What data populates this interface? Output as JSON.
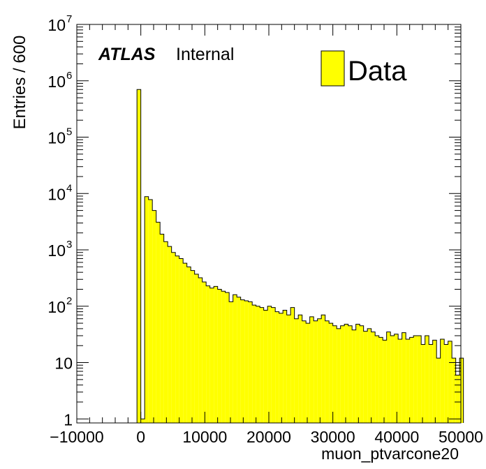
{
  "labels": {
    "atlas": "ATLAS",
    "internal": "Internal"
  },
  "legend": {
    "label": "Data",
    "color": "#ffff00",
    "position": "top-right"
  },
  "chart_data": {
    "type": "bar",
    "title": "",
    "xlabel": "muon_ptvarcone20",
    "ylabel": "Entries / 600",
    "xlim": [
      -10000,
      50000
    ],
    "ylim": [
      0.85,
      10000000
    ],
    "ylog": true,
    "bin_width": 600,
    "fill_color": "#ffff00",
    "xticks": [
      "−10000",
      "0",
      "10000",
      "20000",
      "30000",
      "40000",
      "50000"
    ],
    "xtick_values": [
      -10000,
      0,
      10000,
      20000,
      30000,
      40000,
      50000
    ],
    "yticks": [
      {
        "value": 1,
        "base": "1",
        "exp": ""
      },
      {
        "value": 10,
        "base": "10",
        "exp": ""
      },
      {
        "value": 100,
        "base": "10",
        "exp": "2"
      },
      {
        "value": 1000,
        "base": "10",
        "exp": "3"
      },
      {
        "value": 10000,
        "base": "10",
        "exp": "4"
      },
      {
        "value": 100000,
        "base": "10",
        "exp": "5"
      },
      {
        "value": 1000000,
        "base": "10",
        "exp": "6"
      },
      {
        "value": 10000000,
        "base": "10",
        "exp": "7"
      }
    ],
    "series": [
      {
        "name": "Data",
        "x": [
          -600,
          0,
          600,
          1200,
          1800,
          2400,
          3000,
          3600,
          4200,
          4800,
          5400,
          6000,
          6600,
          7200,
          7800,
          8400,
          9000,
          9600,
          10200,
          10800,
          11400,
          12000,
          12600,
          13200,
          13800,
          14400,
          15000,
          15600,
          16200,
          16800,
          17400,
          18000,
          18600,
          19200,
          19800,
          20400,
          21000,
          21600,
          22200,
          22800,
          23400,
          24000,
          24600,
          25200,
          25800,
          26400,
          27000,
          27600,
          28200,
          28800,
          29400,
          30000,
          30600,
          31200,
          31800,
          32400,
          33000,
          33600,
          34200,
          34800,
          35400,
          36000,
          36600,
          37200,
          37800,
          38400,
          39000,
          39600,
          40200,
          40800,
          41400,
          42000,
          42600,
          43200,
          43800,
          44400,
          45000,
          45600,
          46200,
          46800,
          47400,
          48000,
          48600,
          49200,
          49800
        ],
        "values": [
          700000,
          1,
          8800,
          7800,
          5000,
          3100,
          1900,
          1400,
          1150,
          900,
          780,
          700,
          580,
          500,
          430,
          370,
          320,
          270,
          230,
          210,
          225,
          200,
          185,
          175,
          120,
          160,
          145,
          130,
          125,
          120,
          105,
          100,
          95,
          85,
          100,
          95,
          80,
          75,
          85,
          70,
          95,
          60,
          70,
          55,
          50,
          65,
          55,
          60,
          70,
          55,
          50,
          45,
          40,
          45,
          48,
          45,
          38,
          48,
          45,
          36,
          40,
          35,
          30,
          28,
          25,
          35,
          30,
          32,
          26,
          34,
          26,
          28,
          30,
          30,
          21,
          30,
          21,
          25,
          12,
          26,
          21,
          24,
          12,
          6,
          12
        ]
      }
    ]
  }
}
